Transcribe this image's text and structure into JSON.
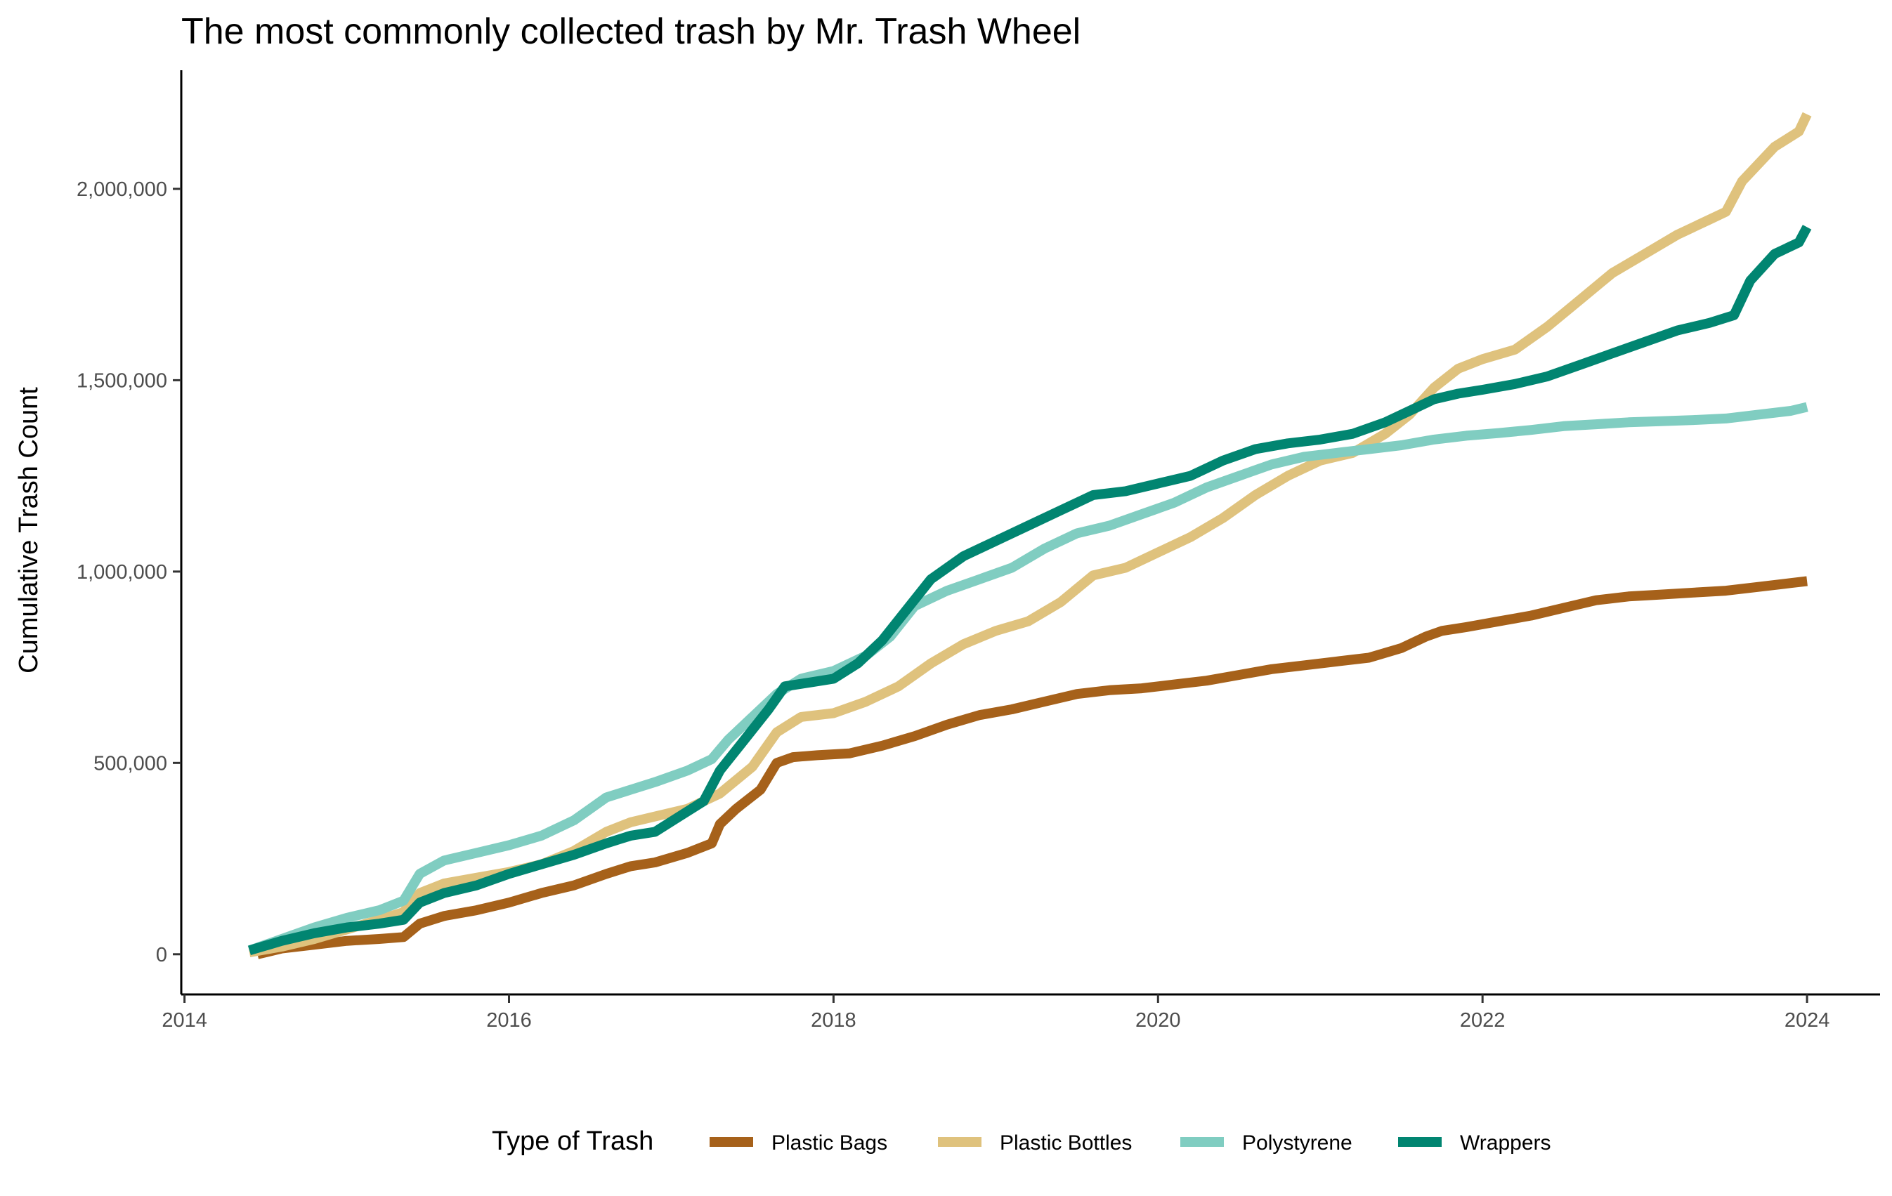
{
  "chart_data": {
    "type": "line",
    "title": "The most commonly collected trash by Mr. Trash Wheel",
    "xlabel": "",
    "ylabel": "Cumulative Trash Count",
    "xlim": [
      2013.98,
      2024.45
    ],
    "ylim": [
      -105000,
      2310000
    ],
    "x_ticks": [
      2014,
      2016,
      2018,
      2020,
      2022,
      2024
    ],
    "x_tick_labels": [
      "2014",
      "2016",
      "2018",
      "2020",
      "2022",
      "2024"
    ],
    "y_ticks": [
      0,
      500000,
      1000000,
      1500000,
      2000000
    ],
    "y_tick_labels": [
      "0",
      "500,000",
      "1,000,000",
      "1,500,000",
      "2,000,000"
    ],
    "grid": false,
    "legend": {
      "title": "Type of Trash",
      "position": "bottom"
    },
    "series": [
      {
        "name": "Plastic Bags",
        "color": "#A6611A",
        "x": [
          2014.45,
          2014.6,
          2014.8,
          2015.0,
          2015.2,
          2015.35,
          2015.45,
          2015.6,
          2015.8,
          2016.0,
          2016.2,
          2016.4,
          2016.6,
          2016.75,
          2016.9,
          2017.1,
          2017.25,
          2017.3,
          2017.4,
          2017.55,
          2017.65,
          2017.75,
          2017.9,
          2018.1,
          2018.3,
          2018.5,
          2018.7,
          2018.9,
          2019.1,
          2019.3,
          2019.5,
          2019.7,
          2019.9,
          2020.1,
          2020.3,
          2020.5,
          2020.7,
          2020.9,
          2021.1,
          2021.3,
          2021.5,
          2021.65,
          2021.75,
          2021.9,
          2022.1,
          2022.3,
          2022.5,
          2022.7,
          2022.9,
          2023.1,
          2023.3,
          2023.5,
          2023.7,
          2023.9,
          2024.0
        ],
        "values": [
          0,
          15000,
          25000,
          35000,
          40000,
          45000,
          80000,
          100000,
          115000,
          135000,
          160000,
          180000,
          210000,
          230000,
          240000,
          265000,
          290000,
          340000,
          380000,
          430000,
          500000,
          515000,
          520000,
          525000,
          545000,
          570000,
          600000,
          625000,
          640000,
          660000,
          680000,
          690000,
          695000,
          705000,
          715000,
          730000,
          745000,
          755000,
          765000,
          775000,
          800000,
          830000,
          845000,
          855000,
          870000,
          885000,
          905000,
          925000,
          935000,
          940000,
          945000,
          950000,
          960000,
          970000,
          975000
        ]
      },
      {
        "name": "Plastic Bottles",
        "color": "#DFC27D",
        "x": [
          2014.4,
          2014.6,
          2014.8,
          2015.0,
          2015.2,
          2015.35,
          2015.45,
          2015.6,
          2015.8,
          2016.0,
          2016.2,
          2016.4,
          2016.6,
          2016.75,
          2016.9,
          2017.1,
          2017.3,
          2017.5,
          2017.65,
          2017.8,
          2018.0,
          2018.2,
          2018.4,
          2018.6,
          2018.8,
          2019.0,
          2019.2,
          2019.4,
          2019.6,
          2019.8,
          2020.0,
          2020.2,
          2020.4,
          2020.6,
          2020.8,
          2021.0,
          2021.2,
          2021.4,
          2021.55,
          2021.7,
          2021.85,
          2022.0,
          2022.2,
          2022.4,
          2022.6,
          2022.8,
          2023.0,
          2023.2,
          2023.4,
          2023.5,
          2023.6,
          2023.8,
          2023.95,
          2024.0
        ],
        "values": [
          5000,
          20000,
          40000,
          65000,
          90000,
          110000,
          160000,
          185000,
          200000,
          215000,
          235000,
          270000,
          320000,
          345000,
          360000,
          380000,
          420000,
          490000,
          580000,
          620000,
          630000,
          660000,
          700000,
          760000,
          810000,
          845000,
          870000,
          920000,
          990000,
          1010000,
          1050000,
          1090000,
          1140000,
          1200000,
          1250000,
          1290000,
          1310000,
          1360000,
          1410000,
          1480000,
          1530000,
          1555000,
          1580000,
          1640000,
          1710000,
          1780000,
          1830000,
          1880000,
          1920000,
          1940000,
          2020000,
          2110000,
          2150000,
          2195000
        ]
      },
      {
        "name": "Polystyrene",
        "color": "#80CDC1",
        "x": [
          2014.4,
          2014.6,
          2014.8,
          2015.0,
          2015.2,
          2015.35,
          2015.45,
          2015.6,
          2015.8,
          2016.0,
          2016.2,
          2016.4,
          2016.6,
          2016.75,
          2016.9,
          2017.1,
          2017.25,
          2017.35,
          2017.5,
          2017.65,
          2017.8,
          2018.0,
          2018.2,
          2018.35,
          2018.5,
          2018.7,
          2018.9,
          2019.1,
          2019.3,
          2019.5,
          2019.7,
          2019.9,
          2020.1,
          2020.3,
          2020.5,
          2020.7,
          2020.9,
          2021.1,
          2021.3,
          2021.5,
          2021.7,
          2021.9,
          2022.1,
          2022.3,
          2022.5,
          2022.7,
          2022.9,
          2023.1,
          2023.3,
          2023.5,
          2023.7,
          2023.9,
          2024.0
        ],
        "values": [
          10000,
          40000,
          70000,
          95000,
          115000,
          140000,
          210000,
          245000,
          265000,
          285000,
          310000,
          350000,
          410000,
          430000,
          450000,
          480000,
          510000,
          560000,
          620000,
          680000,
          720000,
          740000,
          780000,
          830000,
          910000,
          950000,
          980000,
          1010000,
          1060000,
          1100000,
          1120000,
          1150000,
          1180000,
          1220000,
          1250000,
          1280000,
          1300000,
          1310000,
          1320000,
          1330000,
          1345000,
          1355000,
          1362000,
          1370000,
          1380000,
          1385000,
          1390000,
          1393000,
          1396000,
          1400000,
          1410000,
          1420000,
          1430000
        ]
      },
      {
        "name": "Wrappers",
        "color": "#018571",
        "x": [
          2014.4,
          2014.6,
          2014.8,
          2015.0,
          2015.2,
          2015.35,
          2015.45,
          2015.6,
          2015.8,
          2016.0,
          2016.2,
          2016.4,
          2016.6,
          2016.75,
          2016.9,
          2017.05,
          2017.2,
          2017.3,
          2017.45,
          2017.6,
          2017.7,
          2017.85,
          2018.0,
          2018.15,
          2018.3,
          2018.45,
          2018.6,
          2018.8,
          2019.0,
          2019.2,
          2019.4,
          2019.6,
          2019.8,
          2020.0,
          2020.2,
          2020.4,
          2020.6,
          2020.8,
          2021.0,
          2021.2,
          2021.4,
          2021.55,
          2021.7,
          2021.85,
          2022.0,
          2022.2,
          2022.4,
          2022.6,
          2022.8,
          2023.0,
          2023.2,
          2023.4,
          2023.55,
          2023.65,
          2023.8,
          2023.95,
          2024.0
        ],
        "values": [
          10000,
          35000,
          55000,
          70000,
          80000,
          90000,
          135000,
          160000,
          180000,
          210000,
          235000,
          260000,
          290000,
          310000,
          320000,
          360000,
          400000,
          480000,
          560000,
          640000,
          700000,
          710000,
          720000,
          760000,
          820000,
          900000,
          980000,
          1040000,
          1080000,
          1120000,
          1160000,
          1200000,
          1210000,
          1230000,
          1250000,
          1290000,
          1320000,
          1335000,
          1345000,
          1360000,
          1390000,
          1420000,
          1450000,
          1465000,
          1475000,
          1490000,
          1510000,
          1540000,
          1570000,
          1600000,
          1630000,
          1650000,
          1670000,
          1760000,
          1830000,
          1860000,
          1900000
        ]
      }
    ]
  }
}
